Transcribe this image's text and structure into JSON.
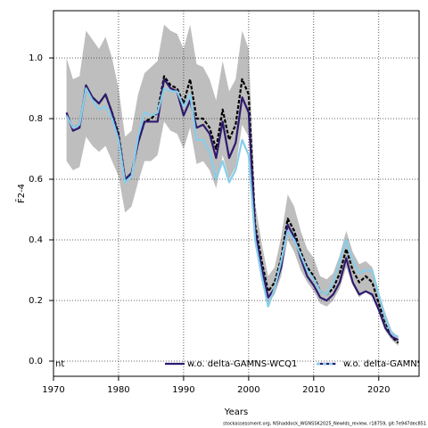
{
  "chart_data": {
    "type": "line",
    "x_label": "Years",
    "y_label": "F̄2-4",
    "footnote": "stockassessment.org, NShaddock_WGNSSK2025_Newlds_review, r18759, git:7e947dec851",
    "x": [
      1972,
      1973,
      1974,
      1975,
      1976,
      1977,
      1978,
      1979,
      1980,
      1981,
      1982,
      1983,
      1984,
      1985,
      1986,
      1987,
      1988,
      1989,
      1990,
      1991,
      1992,
      1993,
      1994,
      1995,
      1996,
      1997,
      1998,
      1999,
      2000,
      2001,
      2002,
      2003,
      2004,
      2005,
      2006,
      2007,
      2008,
      2009,
      2010,
      2011,
      2012,
      2013,
      2014,
      2015,
      2016,
      2017,
      2018,
      2019,
      2020,
      2021,
      2022,
      2023
    ],
    "band": {
      "color": "#bebebe",
      "upper": [
        1.0,
        0.93,
        0.94,
        1.09,
        1.06,
        1.03,
        1.07,
        1.0,
        0.9,
        0.74,
        0.76,
        0.88,
        0.95,
        0.97,
        0.99,
        1.11,
        1.09,
        1.08,
        1.03,
        1.11,
        0.98,
        0.97,
        0.93,
        0.86,
        0.99,
        0.89,
        0.93,
        1.09,
        1.03,
        0.52,
        0.39,
        0.28,
        0.31,
        0.41,
        0.55,
        0.51,
        0.43,
        0.37,
        0.34,
        0.28,
        0.27,
        0.29,
        0.35,
        0.43,
        0.36,
        0.32,
        0.33,
        0.31,
        0.23,
        0.16,
        0.1,
        0.08
      ],
      "lower": [
        0.66,
        0.63,
        0.64,
        0.74,
        0.71,
        0.69,
        0.71,
        0.66,
        0.61,
        0.49,
        0.51,
        0.59,
        0.66,
        0.66,
        0.68,
        0.79,
        0.76,
        0.75,
        0.7,
        0.77,
        0.65,
        0.66,
        0.63,
        0.57,
        0.68,
        0.6,
        0.64,
        0.78,
        0.74,
        0.38,
        0.28,
        0.19,
        0.22,
        0.28,
        0.4,
        0.36,
        0.3,
        0.26,
        0.23,
        0.19,
        0.18,
        0.2,
        0.24,
        0.31,
        0.25,
        0.21,
        0.23,
        0.21,
        0.16,
        0.1,
        0.07,
        0.05
      ]
    },
    "series": [
      {
        "name": "nt",
        "color": "#000000",
        "dashed": true,
        "values": [
          0.81,
          0.77,
          0.78,
          0.9,
          0.87,
          0.85,
          0.88,
          0.82,
          0.75,
          0.6,
          0.62,
          0.72,
          0.79,
          0.8,
          0.82,
          0.94,
          0.91,
          0.9,
          0.85,
          0.93,
          0.8,
          0.8,
          0.77,
          0.7,
          0.83,
          0.73,
          0.78,
          0.93,
          0.88,
          0.45,
          0.33,
          0.23,
          0.26,
          0.34,
          0.47,
          0.43,
          0.36,
          0.31,
          0.28,
          0.23,
          0.22,
          0.24,
          0.29,
          0.37,
          0.3,
          0.26,
          0.28,
          0.26,
          0.19,
          0.13,
          0.08,
          0.06
        ]
      },
      {
        "name": "w.o. delta-GAMNS-WCQ1",
        "color": "#2e1a6e",
        "dashed": false,
        "values": [
          0.82,
          0.76,
          0.77,
          0.91,
          0.87,
          0.85,
          0.88,
          0.82,
          0.74,
          0.6,
          0.62,
          0.72,
          0.79,
          0.79,
          0.79,
          0.93,
          0.9,
          0.89,
          0.81,
          0.86,
          0.77,
          0.78,
          0.75,
          0.67,
          0.79,
          0.67,
          0.72,
          0.87,
          0.82,
          0.43,
          0.31,
          0.21,
          0.24,
          0.31,
          0.45,
          0.41,
          0.34,
          0.28,
          0.25,
          0.21,
          0.2,
          0.22,
          0.26,
          0.34,
          0.26,
          0.22,
          0.23,
          0.22,
          0.17,
          0.11,
          0.08,
          0.07
        ]
      },
      {
        "name": "w.o. delta-GAMNS",
        "color": "#87ceeb",
        "dashed": false,
        "values": [
          0.81,
          0.77,
          0.78,
          0.9,
          0.86,
          0.83,
          0.84,
          0.8,
          0.73,
          0.59,
          0.61,
          0.74,
          0.82,
          0.81,
          0.82,
          0.9,
          0.89,
          0.89,
          0.84,
          0.88,
          0.73,
          0.73,
          0.69,
          0.6,
          0.66,
          0.59,
          0.63,
          0.73,
          0.68,
          0.4,
          0.28,
          0.18,
          0.24,
          0.33,
          0.43,
          0.4,
          0.35,
          0.3,
          0.27,
          0.23,
          0.22,
          0.26,
          0.33,
          0.4,
          0.33,
          0.29,
          0.3,
          0.3,
          0.22,
          0.14,
          0.09,
          0.08
        ]
      }
    ],
    "xlim": [
      1970,
      2026.2
    ],
    "ylim": [
      -0.05,
      1.156
    ],
    "xticks": [
      1970,
      1980,
      1990,
      2000,
      2010,
      2020
    ],
    "yticks": [
      {
        "value": 0,
        "label": "0.0"
      },
      0.2,
      0.4,
      0.6,
      0.8,
      {
        "value": 1,
        "label": "1.0"
      }
    ],
    "grid": true
  }
}
